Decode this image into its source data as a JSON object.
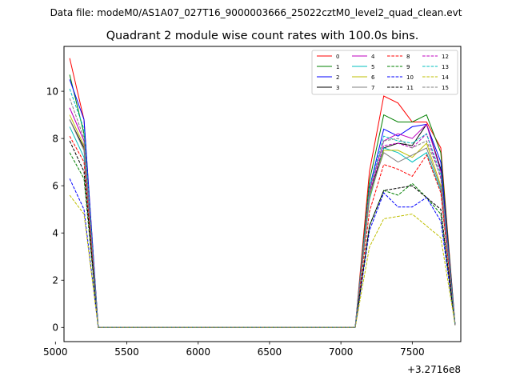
{
  "suptitle": "Data file: modeM0/AS1A07_027T16_9000003666_25022cztM0_level2_quad_clean.evt",
  "chart_data": {
    "type": "line",
    "title": "Quadrant 2 module wise count rates with 100.0s bins.",
    "xlabel": "",
    "ylabel": "",
    "x_offset_label": "+3.2716e8",
    "xlim": [
      5060,
      7840
    ],
    "ylim": [
      -0.6,
      11.9
    ],
    "xticks": [
      5000,
      5500,
      6000,
      6500,
      7000,
      7500
    ],
    "xtick_labels": [
      "5000",
      "5500",
      "6000",
      "6500",
      "7000",
      "7500"
    ],
    "yticks": [
      0,
      2,
      4,
      6,
      8,
      10
    ],
    "ytick_labels": [
      "0",
      "2",
      "4",
      "6",
      "8",
      "10"
    ],
    "grid": false,
    "legend_position": "top-right",
    "legend_columns": 4,
    "x": [
      5100,
      5200,
      5300,
      5400,
      5500,
      5600,
      5700,
      5800,
      5900,
      6000,
      6100,
      6200,
      6300,
      6400,
      6500,
      6600,
      6700,
      6800,
      6900,
      7000,
      7100,
      7200,
      7300,
      7400,
      7500,
      7600,
      7700,
      7800
    ],
    "series": [
      {
        "name": "0",
        "color": "#ff0000",
        "dash": "solid",
        "values": [
          11.4,
          8.8,
          0.0,
          0.0,
          0.0,
          0.0,
          0.0,
          0.0,
          0.0,
          0.0,
          0.0,
          0.0,
          0.0,
          0.0,
          0.0,
          0.0,
          0.0,
          0.0,
          0.0,
          0.0,
          0.0,
          6.6,
          9.8,
          9.5,
          8.7,
          8.7,
          7.6,
          0.1
        ]
      },
      {
        "name": "1",
        "color": "#008000",
        "dash": "solid",
        "values": [
          10.7,
          8.2,
          0.0,
          0.0,
          0.0,
          0.0,
          0.0,
          0.0,
          0.0,
          0.0,
          0.0,
          0.0,
          0.0,
          0.0,
          0.0,
          0.0,
          0.0,
          0.0,
          0.0,
          0.0,
          0.0,
          6.2,
          9.0,
          8.7,
          8.7,
          9.0,
          7.4,
          0.1
        ]
      },
      {
        "name": "2",
        "color": "#0000ff",
        "dash": "solid",
        "values": [
          10.5,
          8.8,
          0.0,
          0.0,
          0.0,
          0.0,
          0.0,
          0.0,
          0.0,
          0.0,
          0.0,
          0.0,
          0.0,
          0.0,
          0.0,
          0.0,
          0.0,
          0.0,
          0.0,
          0.0,
          0.0,
          5.9,
          8.4,
          8.1,
          8.5,
          8.6,
          7.0,
          0.1
        ]
      },
      {
        "name": "3",
        "color": "#000000",
        "dash": "solid",
        "values": [
          8.8,
          7.6,
          0.0,
          0.0,
          0.0,
          0.0,
          0.0,
          0.0,
          0.0,
          0.0,
          0.0,
          0.0,
          0.0,
          0.0,
          0.0,
          0.0,
          0.0,
          0.0,
          0.0,
          0.0,
          0.0,
          5.6,
          7.6,
          7.8,
          7.7,
          8.6,
          6.7,
          0.1
        ]
      },
      {
        "name": "4",
        "color": "#bf00bf",
        "dash": "solid",
        "values": [
          9.3,
          7.9,
          0.0,
          0.0,
          0.0,
          0.0,
          0.0,
          0.0,
          0.0,
          0.0,
          0.0,
          0.0,
          0.0,
          0.0,
          0.0,
          0.0,
          0.0,
          0.0,
          0.0,
          0.0,
          0.0,
          5.8,
          7.9,
          8.2,
          8.0,
          8.6,
          6.6,
          0.1
        ]
      },
      {
        "name": "5",
        "color": "#00bfbf",
        "dash": "solid",
        "values": [
          8.5,
          7.2,
          0.0,
          0.0,
          0.0,
          0.0,
          0.0,
          0.0,
          0.0,
          0.0,
          0.0,
          0.0,
          0.0,
          0.0,
          0.0,
          0.0,
          0.0,
          0.0,
          0.0,
          0.0,
          0.0,
          5.4,
          7.6,
          7.4,
          7.0,
          7.4,
          5.8,
          0.1
        ]
      },
      {
        "name": "6",
        "color": "#bfbf00",
        "dash": "solid",
        "values": [
          9.0,
          7.7,
          0.0,
          0.0,
          0.0,
          0.0,
          0.0,
          0.0,
          0.0,
          0.0,
          0.0,
          0.0,
          0.0,
          0.0,
          0.0,
          0.0,
          0.0,
          0.0,
          0.0,
          0.0,
          0.0,
          5.5,
          7.5,
          7.5,
          7.2,
          7.8,
          6.0,
          0.1
        ]
      },
      {
        "name": "7",
        "color": "#808080",
        "dash": "solid",
        "values": [
          8.8,
          7.5,
          0.0,
          0.0,
          0.0,
          0.0,
          0.0,
          0.0,
          0.0,
          0.0,
          0.0,
          0.0,
          0.0,
          0.0,
          0.0,
          0.0,
          0.0,
          0.0,
          0.0,
          0.0,
          0.0,
          5.6,
          7.4,
          7.0,
          7.3,
          7.6,
          5.9,
          0.1
        ]
      },
      {
        "name": "8",
        "color": "#ff0000",
        "dash": "dashed",
        "values": [
          8.1,
          7.0,
          0.0,
          0.0,
          0.0,
          0.0,
          0.0,
          0.0,
          0.0,
          0.0,
          0.0,
          0.0,
          0.0,
          0.0,
          0.0,
          0.0,
          0.0,
          0.0,
          0.0,
          0.0,
          0.0,
          4.9,
          6.9,
          6.7,
          6.4,
          7.3,
          5.7,
          0.1
        ]
      },
      {
        "name": "9",
        "color": "#008000",
        "dash": "dashed",
        "values": [
          7.4,
          6.3,
          0.0,
          0.0,
          0.0,
          0.0,
          0.0,
          0.0,
          0.0,
          0.0,
          0.0,
          0.0,
          0.0,
          0.0,
          0.0,
          0.0,
          0.0,
          0.0,
          0.0,
          0.0,
          0.0,
          4.3,
          5.8,
          5.6,
          6.1,
          5.5,
          4.8,
          0.1
        ]
      },
      {
        "name": "10",
        "color": "#0000ff",
        "dash": "dashed",
        "values": [
          6.3,
          5.0,
          0.0,
          0.0,
          0.0,
          0.0,
          0.0,
          0.0,
          0.0,
          0.0,
          0.0,
          0.0,
          0.0,
          0.0,
          0.0,
          0.0,
          0.0,
          0.0,
          0.0,
          0.0,
          0.0,
          4.1,
          5.7,
          5.1,
          5.1,
          5.5,
          4.5,
          0.1
        ]
      },
      {
        "name": "11",
        "color": "#000000",
        "dash": "dashed",
        "values": [
          7.9,
          6.6,
          0.0,
          0.0,
          0.0,
          0.0,
          0.0,
          0.0,
          0.0,
          0.0,
          0.0,
          0.0,
          0.0,
          0.0,
          0.0,
          0.0,
          0.0,
          0.0,
          0.0,
          0.0,
          0.0,
          4.3,
          5.8,
          5.9,
          6.0,
          5.5,
          5.0,
          0.1
        ]
      },
      {
        "name": "12",
        "color": "#bf00bf",
        "dash": "dashed",
        "values": [
          9.3,
          7.9,
          0.0,
          0.0,
          0.0,
          0.0,
          0.0,
          0.0,
          0.0,
          0.0,
          0.0,
          0.0,
          0.0,
          0.0,
          0.0,
          0.0,
          0.0,
          0.0,
          0.0,
          0.0,
          0.0,
          5.7,
          7.7,
          7.8,
          7.6,
          8.2,
          6.3,
          0.1
        ]
      },
      {
        "name": "13",
        "color": "#00bfbf",
        "dash": "dashed",
        "values": [
          10.1,
          8.4,
          0.0,
          0.0,
          0.0,
          0.0,
          0.0,
          0.0,
          0.0,
          0.0,
          0.0,
          0.0,
          0.0,
          0.0,
          0.0,
          0.0,
          0.0,
          0.0,
          0.0,
          0.0,
          0.0,
          5.9,
          8.1,
          7.9,
          7.8,
          8.2,
          6.5,
          0.1
        ]
      },
      {
        "name": "14",
        "color": "#bfbf00",
        "dash": "dashed",
        "values": [
          5.6,
          4.8,
          0.0,
          0.0,
          0.0,
          0.0,
          0.0,
          0.0,
          0.0,
          0.0,
          0.0,
          0.0,
          0.0,
          0.0,
          0.0,
          0.0,
          0.0,
          0.0,
          0.0,
          0.0,
          0.0,
          3.4,
          4.6,
          4.7,
          4.8,
          4.3,
          3.8,
          0.1
        ]
      },
      {
        "name": "15",
        "color": "#808080",
        "dash": "dashed",
        "values": [
          9.7,
          8.0,
          0.0,
          0.0,
          0.0,
          0.0,
          0.0,
          0.0,
          0.0,
          0.0,
          0.0,
          0.0,
          0.0,
          0.0,
          0.0,
          0.0,
          0.0,
          0.0,
          0.0,
          0.0,
          0.0,
          5.8,
          7.9,
          8.0,
          7.6,
          7.9,
          6.4,
          0.1
        ]
      }
    ]
  }
}
